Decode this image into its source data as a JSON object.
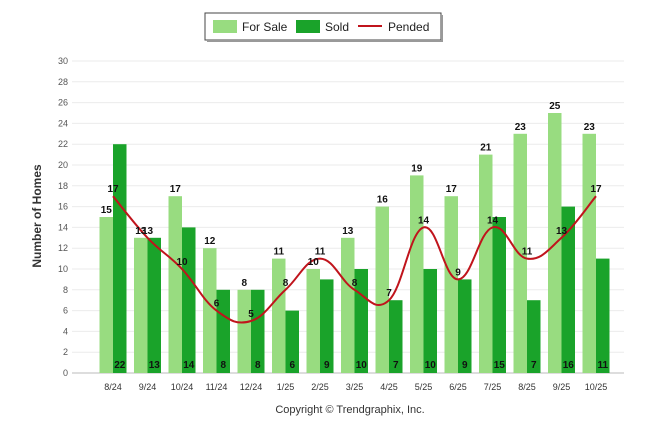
{
  "chart_data": {
    "type": "bar",
    "title": "",
    "xlabel": "",
    "ylabel": "Number of Homes",
    "ylim": [
      0,
      30
    ],
    "yticks": [
      0,
      2,
      4,
      6,
      8,
      10,
      12,
      14,
      16,
      18,
      20,
      22,
      24,
      26,
      28,
      30
    ],
    "grid": true,
    "legend_position": "top-center",
    "categories": [
      "8/24",
      "9/24",
      "10/24",
      "11/24",
      "12/24",
      "1/25",
      "2/25",
      "3/25",
      "4/25",
      "5/25",
      "6/25",
      "7/25",
      "8/25",
      "9/25",
      "10/25"
    ],
    "series": [
      {
        "name": "For Sale",
        "kind": "bar",
        "color": "#98dc80",
        "values": [
          15,
          13,
          17,
          12,
          8,
          11,
          10,
          13,
          16,
          19,
          17,
          21,
          23,
          25,
          23
        ]
      },
      {
        "name": "Sold",
        "kind": "bar",
        "color": "#1aa32a",
        "values": [
          22,
          13,
          14,
          8,
          8,
          6,
          9,
          10,
          7,
          10,
          9,
          15,
          7,
          16,
          11
        ]
      },
      {
        "name": "Pended",
        "kind": "line",
        "color": "#c0141c",
        "values": [
          17,
          13,
          10,
          6,
          5,
          8,
          11,
          8,
          7,
          14,
          9,
          14,
          11,
          13,
          17
        ]
      }
    ],
    "footer": "Copyright © Trendgraphix, Inc."
  }
}
